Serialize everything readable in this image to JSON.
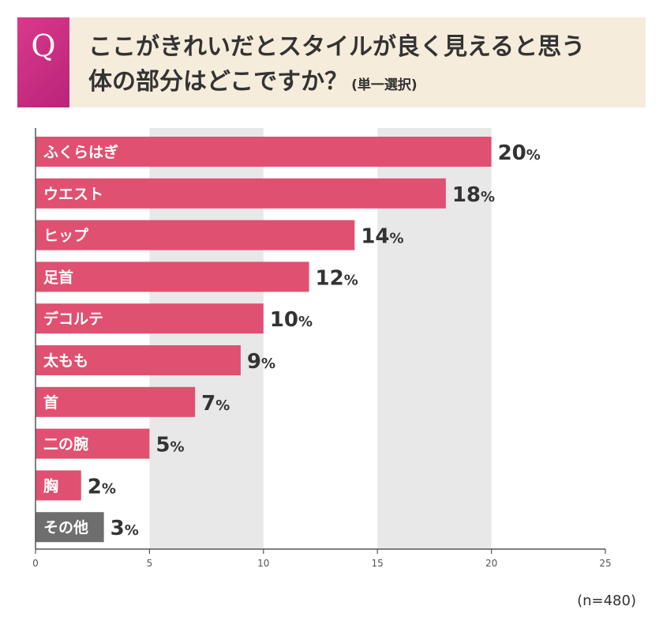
{
  "question": {
    "badge": "Q",
    "line1": "ここがきれいだとスタイルが良く見えると思う",
    "line2": "体の部分はどこですか？",
    "note": "(単一選択)"
  },
  "sample_size": "(n=480)",
  "colors": {
    "bar": "#e05070",
    "bar_other": "#6e6e6e",
    "band": "#e8e8e8",
    "banner": "#f6ecdc",
    "badge": "#cc3385"
  },
  "chart_data": {
    "type": "bar",
    "orientation": "horizontal",
    "categories": [
      "ふくらはぎ",
      "ウエスト",
      "ヒップ",
      "足首",
      "デコルテ",
      "太もも",
      "首",
      "二の腕",
      "胸",
      "その他"
    ],
    "values": [
      20,
      18,
      14,
      12,
      10,
      9,
      7,
      5,
      2,
      3
    ],
    "value_labels": [
      "20%",
      "18%",
      "14%",
      "12%",
      "10%",
      "9%",
      "7%",
      "5%",
      "2%",
      "3%"
    ],
    "highlight_other_index": 9,
    "xlim": [
      0,
      25
    ],
    "xticks": [
      0,
      5,
      10,
      15,
      20,
      25
    ],
    "xtick_labels": [
      "0",
      "5",
      "10",
      "15",
      "20",
      "25"
    ],
    "alternating_bands": true,
    "unit": "%"
  }
}
